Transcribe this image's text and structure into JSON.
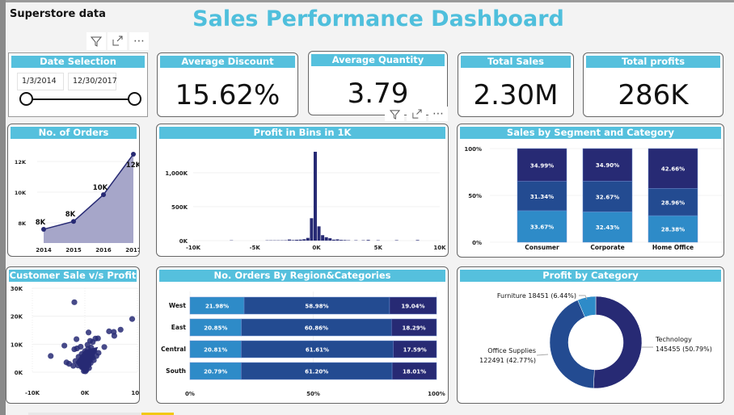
{
  "report_name": "Superstore data",
  "title": "Sales Performance Dashboard",
  "colors": {
    "header": "#55c0dd",
    "title": "#4fbfdc",
    "dark": "#272a74",
    "mid": "#234b91",
    "light": "#2e8bc8"
  },
  "toolbar": {
    "icons": [
      "filter-icon",
      "focus-mode-icon",
      "more-options-icon"
    ],
    "more": "⋯"
  },
  "date_slicer": {
    "title": "Date Selection",
    "start": "1/3/2014",
    "end": "12/30/2017"
  },
  "kpis": [
    {
      "title": "Average Discount",
      "value": "15.62%"
    },
    {
      "title": "Average Quantity",
      "value": "3.79"
    },
    {
      "title": "Total Sales",
      "value": "2.30M"
    },
    {
      "title": "Total profits",
      "value": "286K"
    }
  ],
  "chart_data": [
    {
      "id": "orders",
      "type": "area",
      "title": "No. of Orders",
      "categories": [
        "2014",
        "2015",
        "2016",
        "2017"
      ],
      "values": [
        7581,
        8094,
        9837,
        12476
      ],
      "data_labels": [
        "8K",
        "8K",
        "10K",
        "12K"
      ],
      "yticks": [
        "8K",
        "10K",
        "12K"
      ],
      "ylim": [
        7000,
        13000
      ]
    },
    {
      "id": "bins",
      "type": "bar",
      "title": "Profit in Bins in 1K",
      "xticks": [
        "-10K",
        "-5K",
        "0K",
        "5K",
        "10K"
      ],
      "yticks": [
        "0K",
        "500K",
        "1,000K"
      ],
      "xlim": [
        -10000,
        10000
      ],
      "ylim": [
        0,
        1400000
      ],
      "x": [
        -6900,
        -4000,
        -3700,
        -3400,
        -3100,
        -2800,
        -2500,
        -2200,
        -1900,
        -1600,
        -1300,
        -1000,
        -700,
        -400,
        -100,
        200,
        500,
        800,
        1100,
        1400,
        1700,
        2000,
        2300,
        2600,
        3200,
        3800,
        4200,
        5000,
        6500,
        8200
      ],
      "values": [
        4000,
        4000,
        4000,
        4000,
        4000,
        4000,
        5000,
        16000,
        8000,
        12000,
        14000,
        20000,
        40000,
        330000,
        1310000,
        210000,
        80000,
        50000,
        35000,
        14000,
        18000,
        10000,
        8000,
        5000,
        5000,
        5000,
        10000,
        5000,
        6000,
        8000
      ]
    },
    {
      "id": "segment",
      "type": "bar",
      "stacked": "100%",
      "title": "Sales by Segment and Category",
      "categories": [
        "Consumer",
        "Corporate",
        "Home Office"
      ],
      "yticks": [
        "0%",
        "50%",
        "100%"
      ],
      "series": [
        {
          "values": [
            33.67,
            32.43,
            28.38
          ],
          "labels": [
            "33.67%",
            "32.43%",
            "28.38%"
          ]
        },
        {
          "values": [
            31.34,
            32.67,
            28.96
          ],
          "labels": [
            "31.34%",
            "32.67%",
            "28.96%"
          ]
        },
        {
          "values": [
            34.99,
            34.9,
            42.66
          ],
          "labels": [
            "34.99%",
            "34.90%",
            "42.66%"
          ]
        }
      ]
    },
    {
      "id": "scatter",
      "type": "scatter",
      "title": "Customer Sale v/s Profit",
      "xticks": [
        "-10K",
        "0K",
        "10K"
      ],
      "yticks": [
        "0K",
        "10K",
        "20K",
        "30K"
      ],
      "xlim": [
        -10000,
        10000
      ],
      "ylim": [
        0,
        30000
      ],
      "points": [
        [
          -2000,
          25000
        ],
        [
          9000,
          19000
        ],
        [
          -6500,
          5800
        ],
        [
          -3900,
          9500
        ],
        [
          -1600,
          11800
        ],
        [
          700,
          14200
        ],
        [
          4600,
          14600
        ],
        [
          5500,
          14400
        ],
        [
          6800,
          15200
        ],
        [
          5600,
          13000
        ],
        [
          3700,
          9000
        ],
        [
          2500,
          12100
        ],
        [
          2000,
          12000
        ],
        [
          1000,
          11200
        ],
        [
          1500,
          10800
        ],
        [
          -2000,
          8200
        ],
        [
          -1500,
          8500
        ],
        [
          -800,
          9100
        ],
        [
          500,
          9800
        ],
        [
          2600,
          6900
        ],
        [
          -3500,
          3500
        ],
        [
          -3000,
          3000
        ],
        [
          -2200,
          2300
        ],
        [
          -1800,
          4000
        ],
        [
          -1200,
          5500
        ],
        [
          -600,
          6500
        ],
        [
          0,
          7500
        ],
        [
          600,
          8300
        ],
        [
          1200,
          8800
        ],
        [
          1800,
          7600
        ],
        [
          2200,
          5800
        ],
        [
          1500,
          5200
        ],
        [
          900,
          4700
        ],
        [
          400,
          4200
        ],
        [
          -300,
          3800
        ],
        [
          -900,
          3000
        ],
        [
          -1300,
          2400
        ],
        [
          -600,
          1800
        ],
        [
          0,
          1200
        ],
        [
          300,
          800
        ],
        [
          -200,
          400
        ],
        [
          100,
          300
        ],
        [
          700,
          2600
        ],
        [
          1100,
          3300
        ],
        [
          1700,
          4300
        ],
        [
          500,
          6100
        ],
        [
          -100,
          5300
        ],
        [
          -500,
          4600
        ],
        [
          200,
          2000
        ],
        [
          800,
          1500
        ]
      ]
    },
    {
      "id": "region",
      "type": "bar",
      "stacked": "100%",
      "orientation": "horizontal",
      "title": "No. Orders By Region&Categories",
      "categories": [
        "West",
        "East",
        "Central",
        "South"
      ],
      "xticks": [
        "0%",
        "50%",
        "100%"
      ],
      "series": [
        {
          "values": [
            21.98,
            20.85,
            20.81,
            20.79
          ],
          "labels": [
            "21.98%",
            "20.85%",
            "20.81%",
            "20.79%"
          ]
        },
        {
          "values": [
            58.98,
            60.86,
            61.61,
            61.2
          ],
          "labels": [
            "58.98%",
            "60.86%",
            "61.61%",
            "61.20%"
          ]
        },
        {
          "values": [
            19.04,
            18.29,
            17.59,
            18.01
          ],
          "labels": [
            "19.04%",
            "18.29%",
            "17.59%",
            "18.01%"
          ]
        }
      ]
    },
    {
      "id": "category",
      "type": "pie",
      "donut": true,
      "title": "Profit by Category",
      "slices": [
        {
          "name": "Technology",
          "value": 145455,
          "label": "145455 (50.79%)",
          "pct": 50.79
        },
        {
          "name": "Office Supplies",
          "value": 122491,
          "label": "122491 (42.77%)",
          "pct": 42.77
        },
        {
          "name": "Furniture",
          "value": 18451,
          "label": "Furniture 18451 (6.44%)",
          "pct": 6.44
        }
      ]
    }
  ]
}
